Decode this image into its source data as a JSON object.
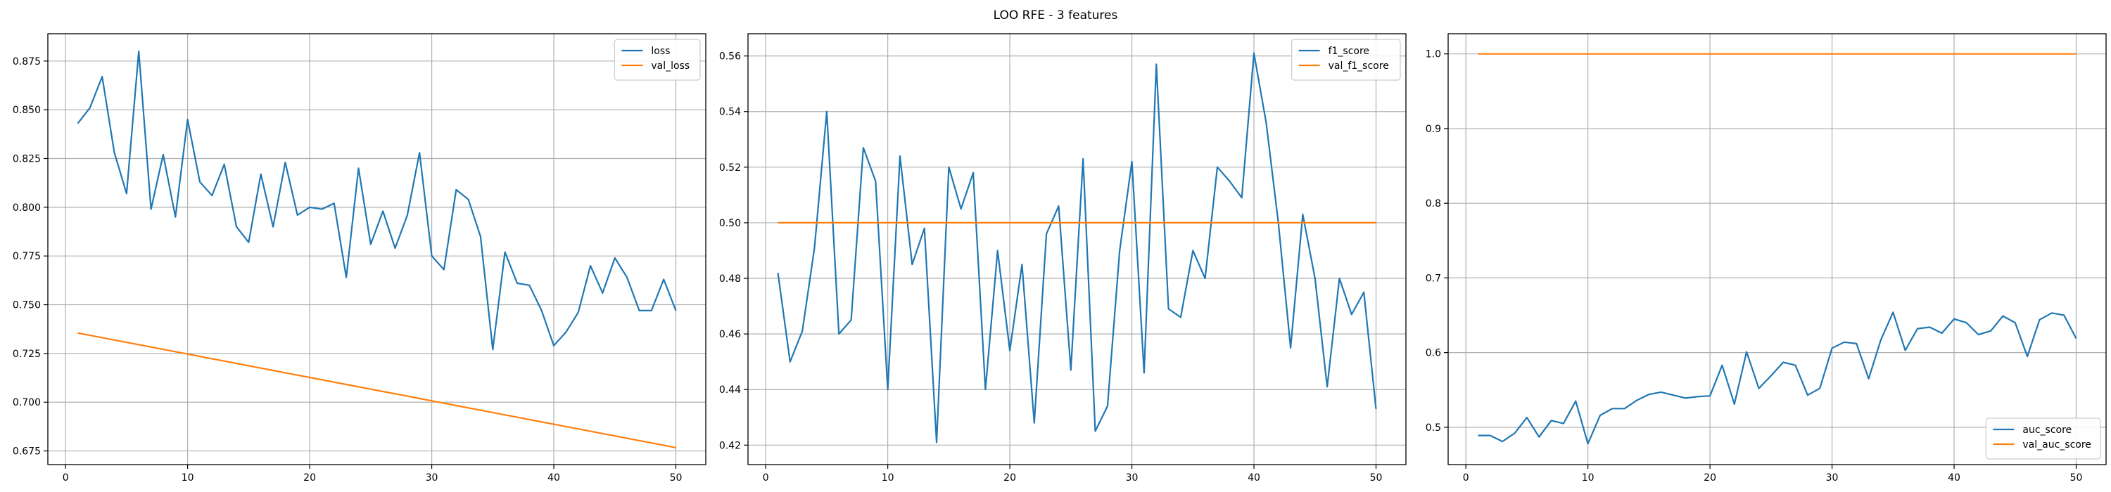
{
  "figure": {
    "title": "LOO RFE - 3 features"
  },
  "colors": {
    "series_train": "#1f77b4",
    "series_val": "#ff7f0e",
    "grid": "#b0b0b0",
    "axes": "#000000",
    "text": "#000000",
    "background": "#ffffff"
  },
  "chart_data": [
    {
      "type": "line",
      "title": "",
      "xlabel": "",
      "ylabel": "",
      "xlim": [
        -1.45,
        52.45
      ],
      "ylim": [
        0.668,
        0.889
      ],
      "xticks": [
        0,
        10,
        20,
        30,
        40,
        50
      ],
      "yticks": [
        0.675,
        0.7,
        0.725,
        0.75,
        0.775,
        0.8,
        0.825,
        0.85,
        0.875
      ],
      "ytick_labels": [
        "0.675",
        "0.700",
        "0.725",
        "0.750",
        "0.775",
        "0.800",
        "0.825",
        "0.850",
        "0.875"
      ],
      "grid": true,
      "legend_position": "upper right",
      "x_start": 1,
      "series": [
        {
          "name": "loss",
          "color": "#1f77b4",
          "values": [
            0.843,
            0.851,
            0.867,
            0.828,
            0.807,
            0.88,
            0.799,
            0.827,
            0.795,
            0.845,
            0.813,
            0.806,
            0.822,
            0.79,
            0.782,
            0.817,
            0.79,
            0.823,
            0.796,
            0.8,
            0.799,
            0.802,
            0.764,
            0.82,
            0.781,
            0.798,
            0.779,
            0.796,
            0.828,
            0.775,
            0.768,
            0.809,
            0.804,
            0.785,
            0.727,
            0.777,
            0.761,
            0.76,
            0.747,
            0.729,
            0.736,
            0.746,
            0.77,
            0.756,
            0.774,
            0.764,
            0.747,
            0.747,
            0.763,
            0.747
          ]
        },
        {
          "name": "val_loss",
          "color": "#ff7f0e",
          "values": [
            0.7355,
            0.7343,
            0.7331,
            0.7319,
            0.7307,
            0.7295,
            0.7283,
            0.7271,
            0.7259,
            0.7247,
            0.7235,
            0.7223,
            0.7211,
            0.7199,
            0.7187,
            0.7175,
            0.7163,
            0.7151,
            0.7139,
            0.7127,
            0.7115,
            0.7103,
            0.7091,
            0.7079,
            0.7067,
            0.7055,
            0.7043,
            0.7031,
            0.7019,
            0.7007,
            0.6995,
            0.6983,
            0.6971,
            0.6959,
            0.6947,
            0.6935,
            0.6923,
            0.6911,
            0.6899,
            0.6887,
            0.6875,
            0.6863,
            0.6851,
            0.6839,
            0.6827,
            0.6815,
            0.6803,
            0.6791,
            0.6779,
            0.6767
          ]
        }
      ]
    },
    {
      "type": "line",
      "title": "",
      "xlabel": "",
      "ylabel": "",
      "xlim": [
        -1.45,
        52.45
      ],
      "ylim": [
        0.413,
        0.568
      ],
      "xticks": [
        0,
        10,
        20,
        30,
        40,
        50
      ],
      "yticks": [
        0.42,
        0.44,
        0.46,
        0.48,
        0.5,
        0.52,
        0.54,
        0.56
      ],
      "ytick_labels": [
        "0.42",
        "0.44",
        "0.46",
        "0.48",
        "0.50",
        "0.52",
        "0.54",
        "0.56"
      ],
      "grid": true,
      "legend_position": "upper right",
      "x_start": 1,
      "series": [
        {
          "name": "f1_score",
          "color": "#1f77b4",
          "values": [
            0.482,
            0.45,
            0.461,
            0.491,
            0.54,
            0.46,
            0.465,
            0.527,
            0.515,
            0.44,
            0.524,
            0.485,
            0.498,
            0.421,
            0.52,
            0.505,
            0.518,
            0.44,
            0.49,
            0.454,
            0.485,
            0.428,
            0.496,
            0.506,
            0.447,
            0.523,
            0.425,
            0.434,
            0.49,
            0.522,
            0.446,
            0.557,
            0.469,
            0.466,
            0.49,
            0.48,
            0.52,
            0.515,
            0.509,
            0.561,
            0.536,
            0.5,
            0.455,
            0.503,
            0.48,
            0.441,
            0.48,
            0.467,
            0.475,
            0.433
          ]
        },
        {
          "name": "val_f1_score",
          "color": "#ff7f0e",
          "values": [
            0.5,
            0.5,
            0.5,
            0.5,
            0.5,
            0.5,
            0.5,
            0.5,
            0.5,
            0.5,
            0.5,
            0.5,
            0.5,
            0.5,
            0.5,
            0.5,
            0.5,
            0.5,
            0.5,
            0.5,
            0.5,
            0.5,
            0.5,
            0.5,
            0.5,
            0.5,
            0.5,
            0.5,
            0.5,
            0.5,
            0.5,
            0.5,
            0.5,
            0.5,
            0.5,
            0.5,
            0.5,
            0.5,
            0.5,
            0.5,
            0.5,
            0.5,
            0.5,
            0.5,
            0.5,
            0.5,
            0.5,
            0.5,
            0.5,
            0.5
          ]
        }
      ]
    },
    {
      "type": "line",
      "title": "",
      "xlabel": "",
      "ylabel": "",
      "xlim": [
        -1.45,
        52.45
      ],
      "ylim": [
        0.45,
        1.027
      ],
      "xticks": [
        0,
        10,
        20,
        30,
        40,
        50
      ],
      "yticks": [
        0.5,
        0.6,
        0.7,
        0.8,
        0.9,
        1.0
      ],
      "ytick_labels": [
        "0.5",
        "0.6",
        "0.7",
        "0.8",
        "0.9",
        "1.0"
      ],
      "grid": true,
      "legend_position": "lower right",
      "x_start": 1,
      "series": [
        {
          "name": "auc_score",
          "color": "#1f77b4",
          "values": [
            0.489,
            0.489,
            0.481,
            0.492,
            0.513,
            0.487,
            0.509,
            0.505,
            0.535,
            0.478,
            0.516,
            0.525,
            0.525,
            0.536,
            0.544,
            0.547,
            0.543,
            0.539,
            0.541,
            0.542,
            0.583,
            0.531,
            0.601,
            0.552,
            0.569,
            0.587,
            0.583,
            0.543,
            0.552,
            0.606,
            0.614,
            0.612,
            0.565,
            0.617,
            0.654,
            0.603,
            0.632,
            0.634,
            0.626,
            0.645,
            0.64,
            0.624,
            0.629,
            0.649,
            0.64,
            0.595,
            0.644,
            0.653,
            0.65,
            0.619
          ]
        },
        {
          "name": "val_auc_score",
          "color": "#ff7f0e",
          "values": [
            1.0,
            1.0,
            1.0,
            1.0,
            1.0,
            1.0,
            1.0,
            1.0,
            1.0,
            1.0,
            1.0,
            1.0,
            1.0,
            1.0,
            1.0,
            1.0,
            1.0,
            1.0,
            1.0,
            1.0,
            1.0,
            1.0,
            1.0,
            1.0,
            1.0,
            1.0,
            1.0,
            1.0,
            1.0,
            1.0,
            1.0,
            1.0,
            1.0,
            1.0,
            1.0,
            1.0,
            1.0,
            1.0,
            1.0,
            1.0,
            1.0,
            1.0,
            1.0,
            1.0,
            1.0,
            1.0,
            1.0,
            1.0,
            1.0,
            1.0
          ]
        }
      ]
    }
  ]
}
